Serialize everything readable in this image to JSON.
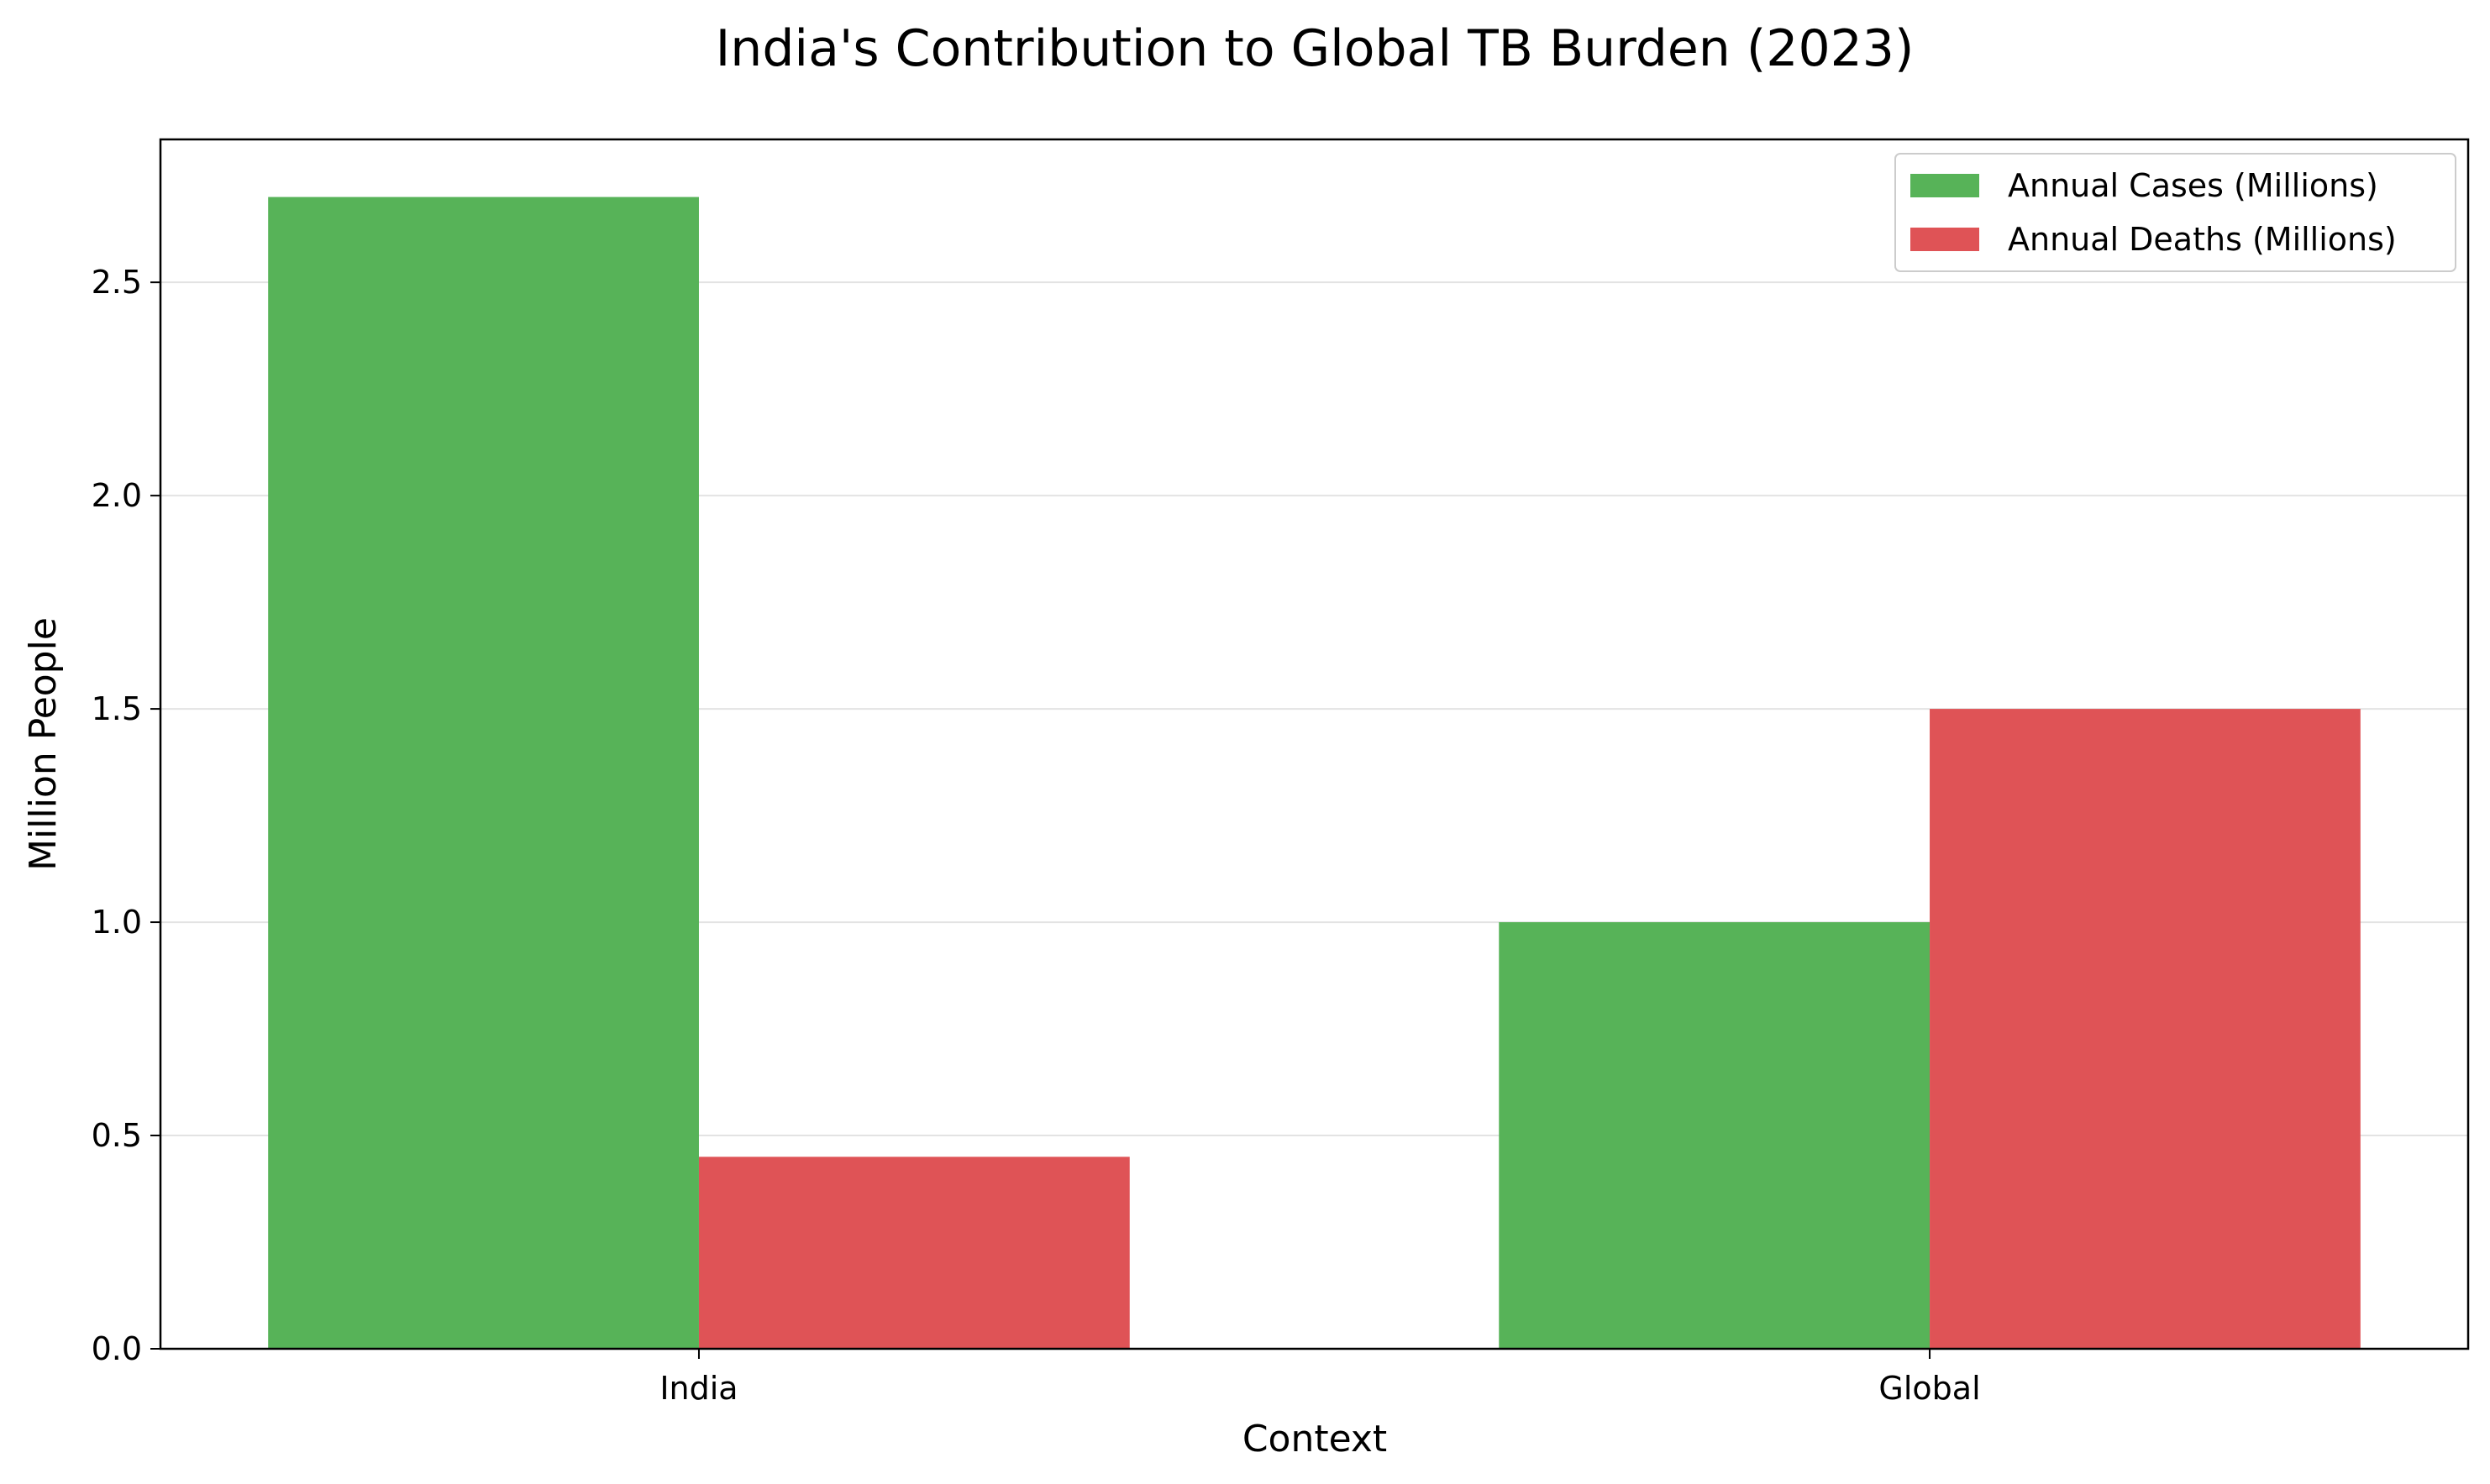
{
  "chart_data": {
    "type": "bar",
    "title": "India's Contribution to Global TB Burden (2023)",
    "xlabel": "Context",
    "ylabel": "Million People",
    "categories": [
      "India",
      "Global"
    ],
    "series": [
      {
        "name": "Annual Cases (Millions)",
        "values": [
          2.7,
          1.0
        ],
        "color": "#57b358"
      },
      {
        "name": "Annual Deaths (Millions)",
        "values": [
          0.45,
          1.5
        ],
        "color": "#df5356"
      }
    ],
    "ylim": [
      0,
      2.835
    ],
    "yticks": [
      "0.0",
      "0.5",
      "1.0",
      "1.5",
      "2.0",
      "2.5"
    ],
    "grid": "horizontal",
    "legend_position": "top-right"
  }
}
